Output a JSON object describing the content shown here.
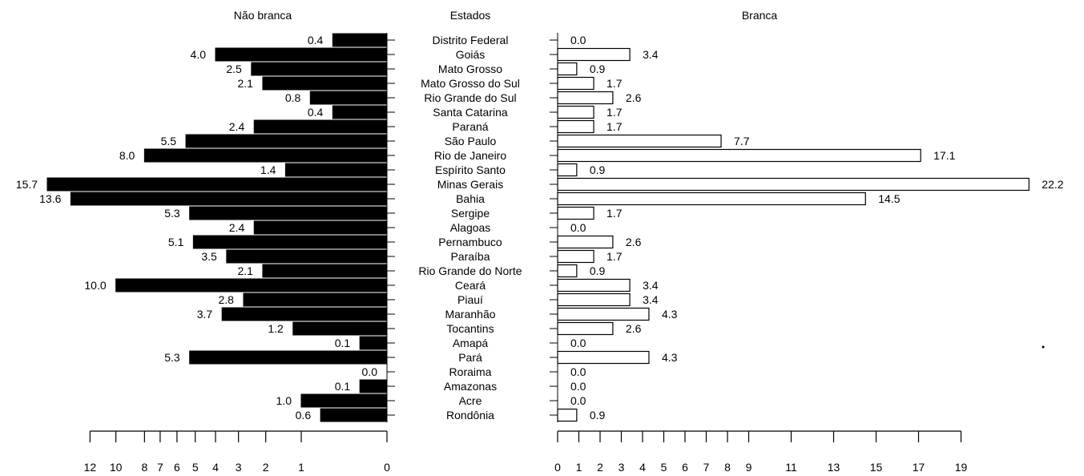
{
  "chart_data": {
    "type": "bar",
    "subtype": "back-to-back horizontal bar (population pyramid style)",
    "center_label": "Estados",
    "categories": [
      "Distrito Federal",
      "Goiás",
      "Mato Grosso",
      "Mato Grosso do Sul",
      "Rio Grande do Sul",
      "Santa Catarina",
      "Paraná",
      "São Paulo",
      "Rio de Janeiro",
      "Espírito Santo",
      "Minas Gerais",
      "Bahia",
      "Sergipe",
      "Alagoas",
      "Pernambuco",
      "Paraíba",
      "Rio Grande do Norte",
      "Ceará",
      "Piauí",
      "Maranhão",
      "Tocantins",
      "Amapá",
      "Pará",
      "Roraima",
      "Amazonas",
      "Acre",
      "Rondônia"
    ],
    "series": [
      {
        "name": "Não branca",
        "color": "#000000",
        "values": [
          0.4,
          4.0,
          2.5,
          2.1,
          0.8,
          0.4,
          2.4,
          5.5,
          8.0,
          1.4,
          15.7,
          13.6,
          5.3,
          2.4,
          5.1,
          3.5,
          2.1,
          10.0,
          2.8,
          3.7,
          1.2,
          0.1,
          5.3,
          0.0,
          0.1,
          1.0,
          0.6
        ],
        "labels": [
          "0.4",
          "4.0",
          "2.5",
          "2.1",
          "0.8",
          "0.4",
          "2.4",
          "5.5",
          "8.0",
          "1.4",
          "15.7",
          "13.6",
          "5.3",
          "2.4",
          "5.1",
          "3.5",
          "2.1",
          "10.0",
          "2.8",
          "3.7",
          "1.2",
          "0.1",
          "5.3",
          "0.0",
          "0.1",
          "1.0",
          "0.6"
        ],
        "axis_scale": "square-root",
        "axis_ticks": [
          0,
          1,
          2,
          3,
          4,
          5,
          6,
          7,
          8,
          10,
          12
        ],
        "axis_tick_labels": [
          "0",
          "1",
          "2",
          "3",
          "4",
          "5",
          "6",
          "7",
          "8",
          "10",
          "12"
        ]
      },
      {
        "name": "Branca",
        "color": "#ffffff",
        "values": [
          0.0,
          3.4,
          0.9,
          1.7,
          2.6,
          1.7,
          1.7,
          7.7,
          17.1,
          0.9,
          22.2,
          14.5,
          1.7,
          0.0,
          2.6,
          1.7,
          0.9,
          3.4,
          3.4,
          4.3,
          2.6,
          0.0,
          4.3,
          0.0,
          0.0,
          0.0,
          0.9
        ],
        "labels": [
          "0.0",
          "3.4",
          "0.9",
          "1.7",
          "2.6",
          "1.7",
          "1.7",
          "7.7",
          "17.1",
          "0.9",
          "22.2",
          "14.5",
          "1.7",
          "0.0",
          "2.6",
          "1.7",
          "0.9",
          "3.4",
          "3.4",
          "4.3",
          "2.6",
          "0.0",
          "4.3",
          "0.0",
          "0.0",
          "0.0",
          "0.9"
        ],
        "axis_scale": "linear",
        "axis_ticks": [
          0,
          1,
          2,
          3,
          4,
          5,
          6,
          7,
          8,
          9,
          11,
          13,
          15,
          17,
          19
        ],
        "axis_tick_labels": [
          "0",
          "1",
          "2",
          "3",
          "4",
          "5",
          "6",
          "7",
          "8",
          "9",
          "11",
          "13",
          "15",
          "17",
          "19"
        ]
      }
    ],
    "grid": false,
    "legend": "none"
  }
}
